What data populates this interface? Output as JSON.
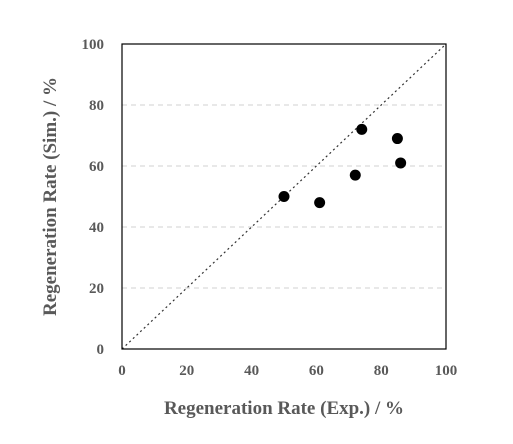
{
  "chart_data": {
    "type": "scatter",
    "xlabel": "Regeneration Rate (Exp.) / %",
    "ylabel": "Regeneration Rate (Sim.) / %",
    "xlim": [
      0,
      100
    ],
    "ylim": [
      0,
      100
    ],
    "xticks": [
      "0",
      "20",
      "40",
      "60",
      "80",
      "100"
    ],
    "yticks": [
      "0",
      "20",
      "40",
      "60",
      "80",
      "100"
    ],
    "grid": "horizontal dashed",
    "reference_line": "y = x (dotted diagonal)",
    "marker_color": "#000000",
    "points": [
      {
        "x": 50,
        "y": 50
      },
      {
        "x": 61,
        "y": 48
      },
      {
        "x": 72,
        "y": 57
      },
      {
        "x": 74,
        "y": 72
      },
      {
        "x": 85,
        "y": 69
      },
      {
        "x": 86,
        "y": 61
      }
    ]
  }
}
